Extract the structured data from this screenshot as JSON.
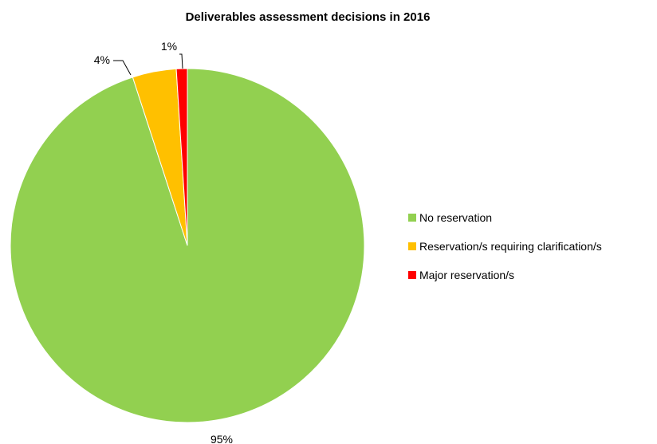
{
  "chart_data": {
    "type": "pie",
    "title": "Deliverables assessment decisions in 2016",
    "categories": [
      "No reservation",
      "Reservation/s requiring clarification/s",
      "Major reservation/s"
    ],
    "values": [
      95,
      4,
      1
    ],
    "value_labels": [
      "95%",
      "4%",
      "1%"
    ],
    "colors": [
      "#92d050",
      "#ffc000",
      "#ff0000"
    ],
    "legend_position": "right",
    "start_angle": "top",
    "direction": "clockwise"
  }
}
